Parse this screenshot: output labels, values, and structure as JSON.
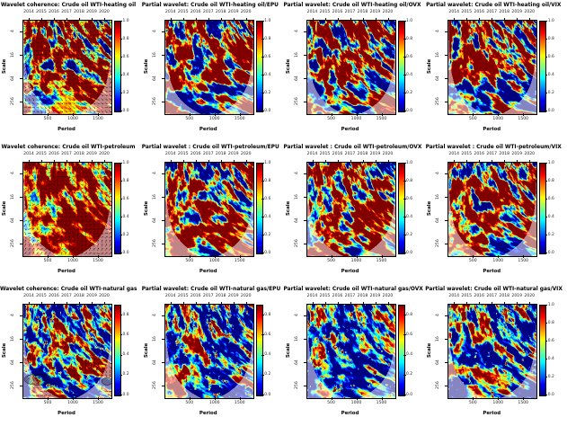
{
  "figure": {
    "description": "3x4 grid of wavelet coherence and partial wavelet heatmap plots for Crude oil WTI against heating oil, petroleum and natural gas, conditioned on EPU, OVX and VIX",
    "background": "#ffffff",
    "rows": 3,
    "cols": 4
  },
  "shared": {
    "top_axis_years": [
      "2014",
      "2015",
      "2016",
      "2017",
      "2018",
      "2019",
      "2020"
    ],
    "xlabel": "Period",
    "ylabel": "Scale",
    "x_ticks": [
      "500",
      "1000",
      "1500"
    ],
    "x_tick_values": [
      500,
      1000,
      1500
    ],
    "x_range": [
      0,
      1750
    ],
    "y_ticks": [
      "4",
      "16",
      "64",
      "256"
    ],
    "y_scale": "log2, from 2 (top) to 512 (bottom)",
    "colormap": "jet (dark blue -> cyan -> green -> yellow -> red -> dark red)",
    "colors": {
      "text": "#000000",
      "coi_shade": "rgba(255,255,255,0.5)",
      "jet_low": "#00007f",
      "jet_high": "#7f0000"
    }
  },
  "chart_data": [
    {
      "type": "heatmap",
      "row": 1,
      "col": 1,
      "title": "Wavelet coherence: Crude oil WTI-heating oil",
      "colorbar": {
        "ticks": [
          "1.0",
          "0.8",
          "0.6",
          "0.4",
          "0.2",
          "0.0"
        ],
        "top_value": 1.0
      },
      "pattern": {
        "seed": 11,
        "bias": 0.88,
        "gain": 1.9,
        "arrows": "dense",
        "speckles": false,
        "bottomBand": null,
        "bottomWarm": true,
        "hatchBlobs": null
      },
      "summary": "Very high coherence (dark red) at nearly all scales with black phase arrows; scattered blue streaks at small scales; yellow-orange core near 256-scale mid-sample; pale cone-of-influence shading at lower corners."
    },
    {
      "type": "heatmap",
      "row": 1,
      "col": 2,
      "title": "Partial wavelet: Crude oil WTI-heating oil/EPU",
      "colorbar": {
        "ticks": [
          "1.0",
          "0.8",
          "0.6",
          "0.4",
          "0.2",
          "0.0"
        ],
        "top_value": 1.0
      },
      "pattern": {
        "seed": 22,
        "bias": 0.74,
        "gain": 2.0,
        "arrows": "none",
        "speckles": false,
        "bottomBand": [
          0.66,
          0.86,
          0.8
        ],
        "bottomWarm": false,
        "hatchBlobs": null
      },
      "summary": "Red-dominant partial coherence with cyan/blue pockets; dark blue horizontal band around 128-256 scale; pale shading outside cone of influence."
    },
    {
      "type": "heatmap",
      "row": 1,
      "col": 3,
      "title": "Partial wavelet: Crude oil WTI-heating oil/OVX",
      "colorbar": {
        "ticks": [
          "1.0",
          "0.8",
          "0.6",
          "0.4",
          "0.2",
          "0.0"
        ],
        "top_value": 1.0
      },
      "pattern": {
        "seed": 33,
        "bias": 0.7,
        "gain": 2.1,
        "arrows": "none",
        "speckles": false,
        "bottomBand": [
          0.6,
          0.87,
          0.75
        ],
        "bottomWarm": false,
        "hatchBlobs": null
      },
      "summary": "Mixed red and blue partial coherence; strong blue band at large scales; pale cone-of-influence corners."
    },
    {
      "type": "heatmap",
      "row": 1,
      "col": 4,
      "title": "Partial wavelet: Crude oil WTI-heating oil/VIX",
      "colorbar": {
        "ticks": [
          "1.0",
          "0.8",
          "0.6",
          "0.4",
          "0.2",
          "0.0"
        ],
        "top_value": 1.0
      },
      "pattern": {
        "seed": 44,
        "bias": 0.72,
        "gain": 2.1,
        "arrows": "none",
        "speckles": false,
        "bottomBand": [
          0.62,
          0.84,
          0.6
        ],
        "bottomWarm": false,
        "hatchBlobs": null
      },
      "summary": "Red-dominant with cyan streaks at small scales and blue band near 256 scale; pale cone shading."
    },
    {
      "type": "heatmap",
      "row": 2,
      "col": 1,
      "title": "Wavelet coherence: Crude oil WTI-petroleum",
      "colorbar": {
        "ticks": [
          "1.0",
          "0.8",
          "0.6",
          "0.4",
          "0.2",
          "0.0"
        ],
        "top_value": 1.0
      },
      "pattern": {
        "seed": 55,
        "bias": 0.97,
        "gain": 1.1,
        "arrows": "dense",
        "speckles": false,
        "bottomBand": null,
        "bottomWarm": false,
        "hatchBlobs": null
      },
      "summary": "Near-uniform dark red (coherence ~1) with dense black phase arrows; few small blue/green spots at small scales; pale cone corners."
    },
    {
      "type": "heatmap",
      "row": 2,
      "col": 2,
      "title": "Partial wavelet : Crude oil WTI-petroleum/EPU",
      "colorbar": {
        "ticks": [
          "1.0",
          "0.8",
          "0.6",
          "0.4",
          "0.2",
          "0.0"
        ],
        "top_value": 1.0
      },
      "pattern": {
        "seed": 66,
        "bias": 0.8,
        "gain": 1.9,
        "arrows": "none",
        "speckles": false,
        "bottomBand": null,
        "bottomWarm": false,
        "hatchBlobs": null
      },
      "summary": "Strongly red partial coherence with yellow flame-like streaks and sparse blue gaps; pale pink shading outside cone."
    },
    {
      "type": "heatmap",
      "row": 2,
      "col": 3,
      "title": "Partial wavelet : Crude oil WTI-petroleum/OVX",
      "colorbar": {
        "ticks": [
          "1.0",
          "0.8",
          "0.6",
          "0.4",
          "0.2",
          "0.0"
        ],
        "top_value": 1.0
      },
      "pattern": {
        "seed": 77,
        "bias": 0.78,
        "gain": 2.0,
        "arrows": "none",
        "speckles": false,
        "bottomBand": null,
        "bottomWarm": false,
        "hatchBlobs": null
      },
      "summary": "Red-dominant with vertical blue streaks around 2019 at mid scales; pale cone shading."
    },
    {
      "type": "heatmap",
      "row": 2,
      "col": 4,
      "title": "Partial wavelet : Crude oil WTI-petroleum/VIX",
      "colorbar": {
        "ticks": [
          "1.0",
          "0.8",
          "0.6",
          "0.4",
          "0.2",
          "0.0"
        ],
        "top_value": 1.0
      },
      "pattern": {
        "seed": 88,
        "bias": 0.78,
        "gain": 2.0,
        "arrows": "none",
        "speckles": false,
        "bottomBand": null,
        "bottomWarm": false,
        "hatchBlobs": null
      },
      "summary": "Red-dominant with a distinct blue patch near 64 scale around 2019; pale cone shading."
    },
    {
      "type": "heatmap",
      "row": 3,
      "col": 1,
      "title": "Wavelet coherence: Crude oil WTI-natural gas",
      "colorbar": {
        "ticks": [
          "0.8",
          "0.6",
          "0.4",
          "0.2",
          "0.0"
        ],
        "top_value": 0.9
      },
      "pattern": {
        "seed": 99,
        "bias": 0.36,
        "gain": 1.7,
        "arrows": "sparse",
        "speckles": true,
        "bottomBand": null,
        "bottomWarm": false,
        "hatchBlobs": [
          [
            0.17,
            0.8,
            0.16,
            0.06
          ],
          [
            0.95,
            0.82,
            0.06,
            0.04
          ]
        ]
      },
      "summary": "Mostly low coherence (blue) with isolated red/orange blobs outlined in black; cross-hatched significant region at 256 scale early sample; pale cone corners."
    },
    {
      "type": "heatmap",
      "row": 3,
      "col": 2,
      "title": "Partial wavelet: Crude oil WTI-natural gas/EPU",
      "colorbar": {
        "ticks": [
          "0.8",
          "0.6",
          "0.4",
          "0.2",
          "0.0"
        ],
        "top_value": 0.9
      },
      "pattern": {
        "seed": 111,
        "bias": 0.34,
        "gain": 1.6,
        "arrows": "none",
        "speckles": true,
        "bottomBand": null,
        "bottomWarm": false,
        "hatchBlobs": null
      },
      "summary": "Blue-dominant with cyan webbing and scattered orange-red specks; red patch at large scales lower-left; pale cone shading."
    },
    {
      "type": "heatmap",
      "row": 3,
      "col": 3,
      "title": "Partial wavelet: Crude oil WTI-natural gas/OVX",
      "colorbar": {
        "ticks": [
          "0.8",
          "0.6",
          "0.4",
          "0.2",
          "0.0"
        ],
        "top_value": 0.9
      },
      "pattern": {
        "seed": 122,
        "bias": 0.28,
        "gain": 1.4,
        "arrows": "none",
        "speckles": true,
        "bottomBand": null,
        "bottomWarm": false,
        "hatchBlobs": null
      },
      "summary": "Deep blue dominant with sparse small yellow-red specks at small scales; pale cone shading."
    },
    {
      "type": "heatmap",
      "row": 3,
      "col": 4,
      "title": "Partial wavelet: Crude oil WTI-natural gas/VIX",
      "colorbar": {
        "ticks": [
          "1.0",
          "0.8",
          "0.6",
          "0.4",
          "0.2",
          "0.0"
        ],
        "top_value": 1.0
      },
      "pattern": {
        "seed": 133,
        "bias": 0.33,
        "gain": 1.6,
        "arrows": "none",
        "speckles": true,
        "bottomBand": null,
        "bottomWarm": false,
        "hatchBlobs": null
      },
      "summary": "Blue-dominant with cyan mesh and orange hot spots mid-sample; pale cone shading."
    }
  ]
}
